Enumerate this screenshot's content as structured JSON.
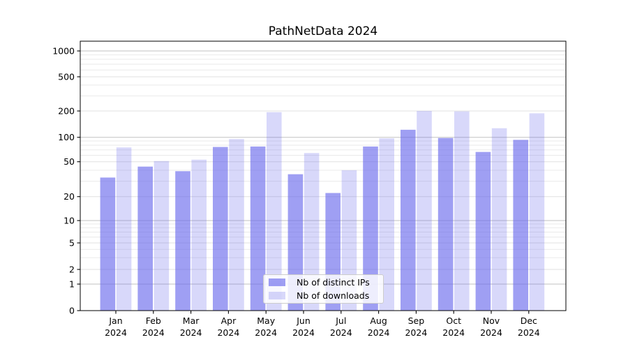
{
  "chart_data": {
    "type": "bar",
    "title": "PathNetData 2024",
    "categories": [
      "Jan 2024",
      "Feb 2024",
      "Mar 2024",
      "Apr 2024",
      "May 2024",
      "Jun 2024",
      "Jul 2024",
      "Aug 2024",
      "Sep 2024",
      "Oct 2024",
      "Nov 2024",
      "Dec 2024"
    ],
    "series": [
      {
        "name": "Nb of distinct IPs",
        "color": "rgba(100,100,235,0.62)",
        "values": [
          33,
          44,
          39,
          76,
          77,
          36,
          22,
          77,
          122,
          98,
          66,
          93
        ]
      },
      {
        "name": "Nb of downloads",
        "color": "rgba(100,100,235,0.25)",
        "values": [
          75,
          51,
          53,
          95,
          194,
          64,
          40,
          97,
          200,
          198,
          127,
          188
        ]
      }
    ],
    "xlabel": "",
    "ylabel": "",
    "y_axis": {
      "scale": "symlog",
      "tick_values": [
        0,
        1,
        2,
        5,
        10,
        20,
        50,
        100,
        200,
        500,
        1000
      ],
      "tick_labels": [
        "0",
        "1",
        "2",
        "5",
        "10",
        "20",
        "50",
        "100",
        "200",
        "500",
        "1000"
      ],
      "ylim": [
        0,
        1400
      ]
    },
    "grid": true,
    "legend_position": "lower center",
    "colors": {
      "decade_gridline": "#c2c2c2",
      "labeled_gridline": "#e0e0e0",
      "minor_gridline": "#eaeaea",
      "spine": "#000000",
      "text": "#000000"
    }
  }
}
